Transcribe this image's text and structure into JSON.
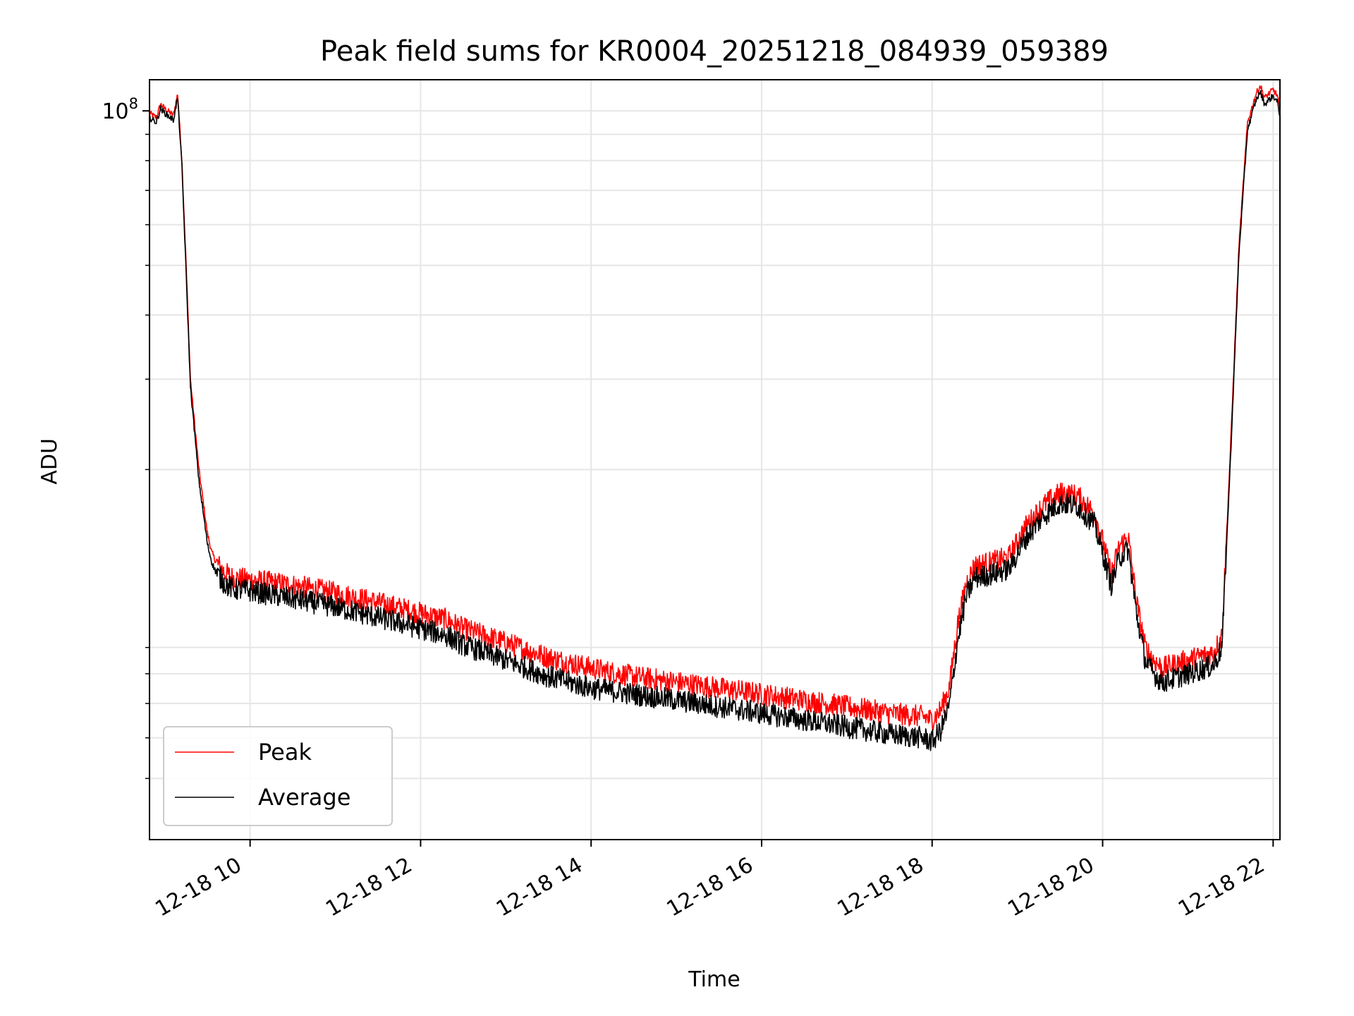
{
  "chart_data": {
    "type": "line",
    "title": "Peak field sums for KR0004_20251218_084939_059389",
    "xlabel": "Time",
    "ylabel": "ADU",
    "yscale": "log",
    "ylim": [
      3800000,
      115000000
    ],
    "xlim_hours": [
      8.82,
      22.08
    ],
    "x_ticks": [
      {
        "hour": 10,
        "label": "12-18 10"
      },
      {
        "hour": 12,
        "label": "12-18 12"
      },
      {
        "hour": 14,
        "label": "12-18 14"
      },
      {
        "hour": 16,
        "label": "12-18 16"
      },
      {
        "hour": 18,
        "label": "12-18 18"
      },
      {
        "hour": 20,
        "label": "12-18 20"
      },
      {
        "hour": 22,
        "label": "12-18 22"
      }
    ],
    "y_major_tick": {
      "value": 100000000,
      "label_base": "10",
      "label_exp": "8"
    },
    "y_minor_ticks": [
      5000000,
      6000000,
      7000000,
      8000000,
      9000000,
      20000000,
      30000000,
      40000000,
      50000000,
      60000000,
      70000000,
      80000000,
      90000000
    ],
    "grid": true,
    "legend": {
      "position": "lower-left"
    },
    "series": [
      {
        "name": "Peak",
        "color": "#ff0000",
        "x": [
          8.82,
          8.9,
          8.95,
          9.0,
          9.1,
          9.15,
          9.2,
          9.25,
          9.3,
          9.4,
          9.5,
          9.55,
          9.6,
          9.7,
          9.8,
          10.0,
          10.5,
          11.0,
          11.5,
          12.0,
          12.3,
          12.5,
          13.0,
          13.5,
          14.0,
          14.5,
          15.0,
          15.5,
          16.0,
          16.5,
          17.0,
          17.5,
          17.9,
          18.0,
          18.1,
          18.2,
          18.3,
          18.4,
          18.5,
          18.7,
          18.9,
          19.1,
          19.3,
          19.5,
          19.7,
          19.9,
          20.0,
          20.1,
          20.2,
          20.3,
          20.4,
          20.5,
          20.6,
          20.7,
          20.9,
          21.1,
          21.3,
          21.4,
          21.5,
          21.6,
          21.7,
          21.8,
          21.85,
          21.9,
          21.95,
          22.0,
          22.05,
          22.08
        ],
        "values": [
          99000000,
          97000000,
          103000000,
          101000000,
          98000000,
          108000000,
          80000000,
          50000000,
          30000000,
          20000000,
          15000000,
          13800000,
          13200000,
          12600000,
          12300000,
          12200000,
          11900000,
          11500000,
          11000000,
          10500000,
          10200000,
          9800000,
          9200000,
          8600000,
          8200000,
          7900000,
          7700000,
          7500000,
          7300000,
          7100000,
          6900000,
          6700000,
          6600000,
          6500000,
          6800000,
          7500000,
          10000000,
          12000000,
          13000000,
          13200000,
          13500000,
          15500000,
          17000000,
          18000000,
          17800000,
          16500000,
          14500000,
          12500000,
          14200000,
          14800000,
          11000000,
          9000000,
          8500000,
          8200000,
          8400000,
          8600000,
          8800000,
          9500000,
          22000000,
          55000000,
          95000000,
          108000000,
          112000000,
          106000000,
          108000000,
          110000000,
          107000000,
          101000000
        ]
      },
      {
        "name": "Average",
        "color": "#000000",
        "x": [
          8.82,
          8.9,
          8.95,
          9.0,
          9.1,
          9.15,
          9.2,
          9.25,
          9.3,
          9.4,
          9.5,
          9.55,
          9.6,
          9.7,
          9.8,
          10.0,
          10.5,
          11.0,
          11.5,
          12.0,
          12.3,
          12.5,
          13.0,
          13.5,
          14.0,
          14.5,
          15.0,
          15.5,
          16.0,
          16.5,
          17.0,
          17.5,
          17.9,
          18.0,
          18.1,
          18.2,
          18.3,
          18.4,
          18.5,
          18.7,
          18.9,
          19.1,
          19.3,
          19.5,
          19.7,
          19.9,
          20.0,
          20.1,
          20.2,
          20.3,
          20.4,
          20.5,
          20.6,
          20.7,
          20.9,
          21.1,
          21.3,
          21.4,
          21.5,
          21.6,
          21.7,
          21.8,
          21.85,
          21.9,
          21.95,
          22.0,
          22.05,
          22.08
        ],
        "values": [
          97000000,
          95000000,
          101000000,
          99000000,
          96000000,
          106000000,
          78000000,
          48000000,
          29000000,
          19000000,
          14300000,
          13200000,
          12600000,
          12000000,
          11700000,
          11600000,
          11200000,
          10800000,
          10300000,
          9800000,
          9500000,
          9100000,
          8500000,
          7900000,
          7500000,
          7300000,
          7100000,
          6900000,
          6700000,
          6500000,
          6300000,
          6100000,
          6000000,
          5900000,
          6200000,
          6900000,
          9300000,
          11300000,
          12300000,
          12500000,
          12800000,
          14700000,
          16200000,
          17200000,
          17000000,
          15700000,
          13800000,
          11900000,
          13500000,
          14000000,
          10400000,
          8500000,
          8000000,
          7700000,
          7900000,
          8100000,
          8300000,
          9000000,
          21000000,
          53000000,
          92000000,
          105000000,
          109000000,
          103000000,
          105000000,
          107000000,
          104000000,
          98000000
        ]
      }
    ]
  }
}
